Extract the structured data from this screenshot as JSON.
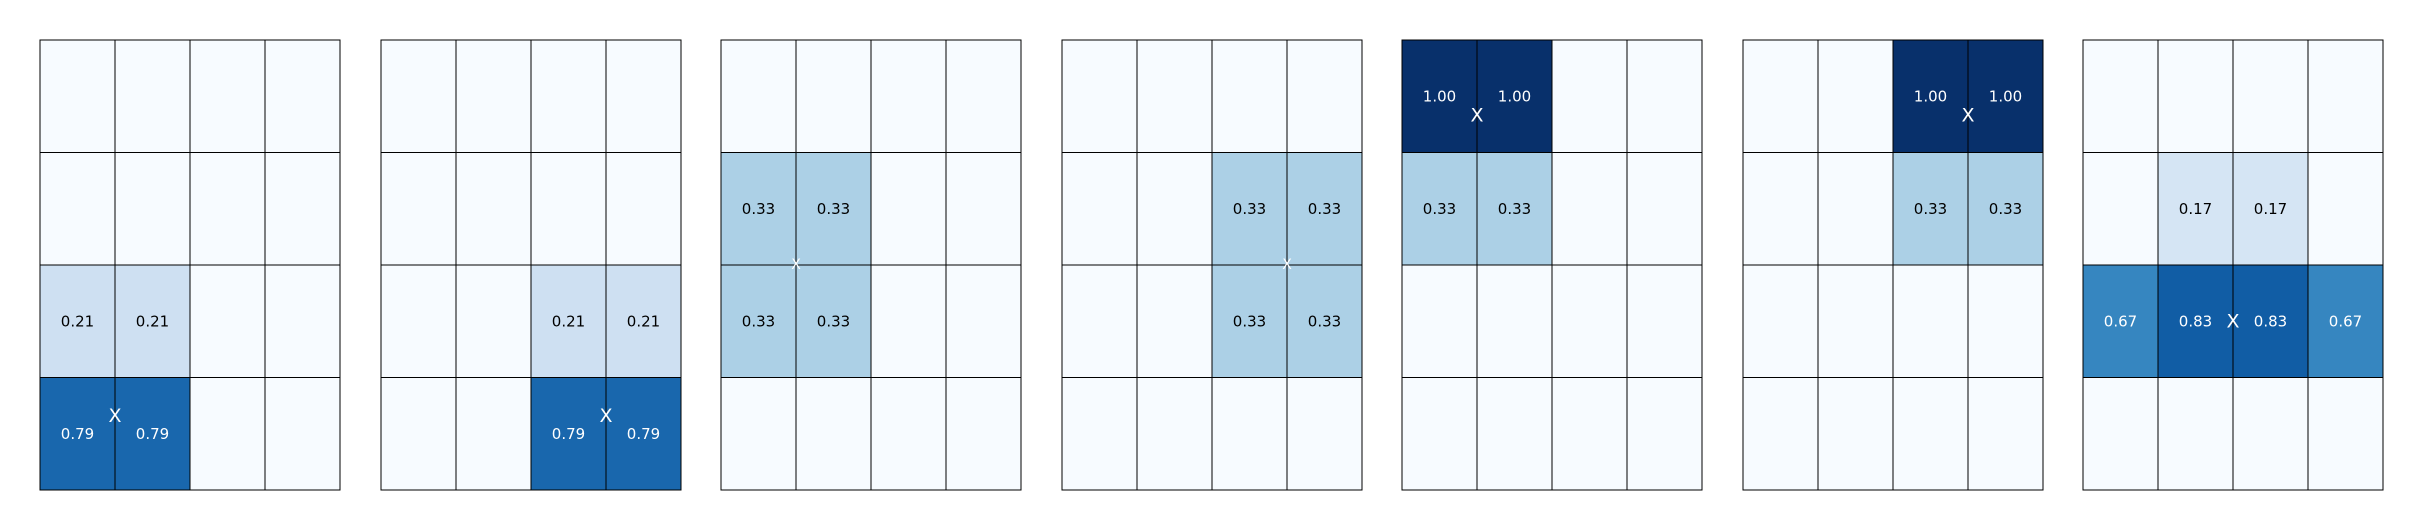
{
  "chart_data": {
    "type": "heatmap",
    "colormap": "Blues",
    "vmin": 0,
    "vmax": 1,
    "grid_rows": 4,
    "grid_cols": 4,
    "marker_symbol": "X",
    "panels": [
      {
        "cells": [
          {
            "row": 2,
            "col": 0,
            "value": 0.21,
            "label": "0.21"
          },
          {
            "row": 2,
            "col": 1,
            "value": 0.21,
            "label": "0.21"
          },
          {
            "row": 3,
            "col": 0,
            "value": 0.79,
            "label": "0.79"
          },
          {
            "row": 3,
            "col": 1,
            "value": 0.79,
            "label": "0.79"
          }
        ],
        "marker": {
          "row": 3.34,
          "col": 1.0,
          "size": "large"
        }
      },
      {
        "cells": [
          {
            "row": 2,
            "col": 2,
            "value": 0.21,
            "label": "0.21"
          },
          {
            "row": 2,
            "col": 3,
            "value": 0.21,
            "label": "0.21"
          },
          {
            "row": 3,
            "col": 2,
            "value": 0.79,
            "label": "0.79"
          },
          {
            "row": 3,
            "col": 3,
            "value": 0.79,
            "label": "0.79"
          }
        ],
        "marker": {
          "row": 3.34,
          "col": 3.0,
          "size": "large"
        }
      },
      {
        "cells": [
          {
            "row": 1,
            "col": 0,
            "value": 0.33,
            "label": "0.33"
          },
          {
            "row": 1,
            "col": 1,
            "value": 0.33,
            "label": "0.33"
          },
          {
            "row": 2,
            "col": 0,
            "value": 0.33,
            "label": "0.33"
          },
          {
            "row": 2,
            "col": 1,
            "value": 0.33,
            "label": "0.33"
          }
        ],
        "marker": {
          "row": 2.0,
          "col": 1.0,
          "size": "small"
        }
      },
      {
        "cells": [
          {
            "row": 1,
            "col": 2,
            "value": 0.33,
            "label": "0.33"
          },
          {
            "row": 1,
            "col": 3,
            "value": 0.33,
            "label": "0.33"
          },
          {
            "row": 2,
            "col": 2,
            "value": 0.33,
            "label": "0.33"
          },
          {
            "row": 2,
            "col": 3,
            "value": 0.33,
            "label": "0.33"
          }
        ],
        "marker": {
          "row": 2.0,
          "col": 3.0,
          "size": "small"
        }
      },
      {
        "cells": [
          {
            "row": 0,
            "col": 0,
            "value": 1.0,
            "label": "1.00"
          },
          {
            "row": 0,
            "col": 1,
            "value": 1.0,
            "label": "1.00"
          },
          {
            "row": 1,
            "col": 0,
            "value": 0.33,
            "label": "0.33"
          },
          {
            "row": 1,
            "col": 1,
            "value": 0.33,
            "label": "0.33"
          }
        ],
        "marker": {
          "row": 0.67,
          "col": 1.0,
          "size": "large"
        }
      },
      {
        "cells": [
          {
            "row": 0,
            "col": 2,
            "value": 1.0,
            "label": "1.00"
          },
          {
            "row": 0,
            "col": 3,
            "value": 1.0,
            "label": "1.00"
          },
          {
            "row": 1,
            "col": 2,
            "value": 0.33,
            "label": "0.33"
          },
          {
            "row": 1,
            "col": 3,
            "value": 0.33,
            "label": "0.33"
          }
        ],
        "marker": {
          "row": 0.67,
          "col": 3.0,
          "size": "large"
        }
      },
      {
        "cells": [
          {
            "row": 1,
            "col": 1,
            "value": 0.17,
            "label": "0.17"
          },
          {
            "row": 1,
            "col": 2,
            "value": 0.17,
            "label": "0.17"
          },
          {
            "row": 2,
            "col": 0,
            "value": 0.67,
            "label": "0.67"
          },
          {
            "row": 2,
            "col": 1,
            "value": 0.83,
            "label": "0.83"
          },
          {
            "row": 2,
            "col": 2,
            "value": 0.83,
            "label": "0.83"
          },
          {
            "row": 2,
            "col": 3,
            "value": 0.67,
            "label": "0.67"
          }
        ],
        "marker": {
          "row": 2.5,
          "col": 2.0,
          "size": "large"
        }
      }
    ]
  }
}
